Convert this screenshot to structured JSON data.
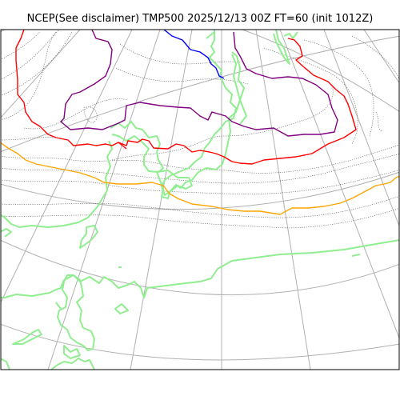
{
  "title": "NCEP(See disclaimer) TMP500 2025/12/13 00Z FT=60 (init 1012Z)",
  "colors": {
    "background": "#ffffff",
    "frame": "#000000",
    "graticule": "#b0b0b0",
    "isotherm_minor": "#555555",
    "coastline": "#90ee90",
    "contour_blue": "#0000ff",
    "contour_purple": "#800080",
    "contour_red": "#ff0000",
    "contour_orange": "#ffa500"
  }
}
